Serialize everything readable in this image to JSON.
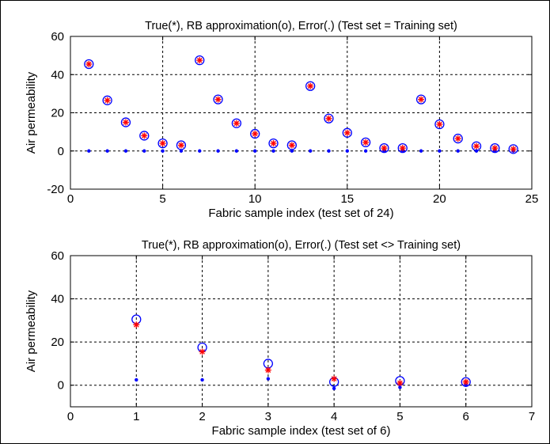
{
  "colors": {
    "true_marker": "#ff0000",
    "approx_marker": "#0000ff",
    "error_marker": "#0000ff",
    "axes": "#000000",
    "grid": "#000000",
    "background": "#ffffff"
  },
  "chart_data": [
    {
      "type": "scatter",
      "title": "True(*), RB approximation(o), Error(.) (Test set = Training set)",
      "xlabel": "Fabric sample index (test set of 24)",
      "ylabel": "Air permeability",
      "xlim": [
        0,
        25
      ],
      "ylim": [
        -20,
        60
      ],
      "xticks": [
        "0",
        "5",
        "10",
        "15",
        "20",
        "25"
      ],
      "yticks": [
        "-20",
        "0",
        "20",
        "40",
        "60"
      ],
      "grid": true,
      "series": [
        {
          "marker": "asterisk",
          "x": [
            1,
            2,
            3,
            4,
            5,
            6,
            7,
            8,
            9,
            10,
            11,
            12,
            13,
            14,
            15,
            16,
            17,
            18,
            19,
            20,
            21,
            22,
            23,
            24
          ],
          "y": [
            45.5,
            26.5,
            15,
            8,
            4,
            3,
            47.5,
            27,
            14.5,
            9,
            4,
            3,
            34,
            17,
            9.5,
            4.5,
            1.5,
            1.5,
            27,
            14,
            6.5,
            2.5,
            1.5,
            1
          ]
        },
        {
          "marker": "circle",
          "x": [
            1,
            2,
            3,
            4,
            5,
            6,
            7,
            8,
            9,
            10,
            11,
            12,
            13,
            14,
            15,
            16,
            17,
            18,
            19,
            20,
            21,
            22,
            23,
            24
          ],
          "y": [
            45.5,
            26.5,
            15,
            8,
            4,
            3,
            47.5,
            27,
            14.5,
            9,
            4,
            3,
            34,
            17,
            9.5,
            4.5,
            1.5,
            1.5,
            27,
            14,
            6.5,
            2.5,
            1.5,
            1
          ]
        },
        {
          "marker": "dot",
          "x": [
            1,
            2,
            3,
            4,
            5,
            6,
            7,
            8,
            9,
            10,
            11,
            12,
            13,
            14,
            15,
            16,
            17,
            18,
            19,
            20,
            21,
            22,
            23,
            24
          ],
          "y": [
            0,
            0,
            0,
            0,
            0,
            0,
            0,
            0,
            0,
            0,
            0,
            0,
            0,
            0,
            0,
            0,
            0,
            0,
            0,
            0,
            0,
            0,
            0,
            0
          ]
        }
      ]
    },
    {
      "type": "scatter",
      "title": "True(*), RB approximation(o), Error(.) (Test set <> Training set)",
      "xlabel": "Fabric sample index (test set of 6)",
      "ylabel": "Air permeability",
      "xlim": [
        0,
        7
      ],
      "ylim": [
        -10,
        60
      ],
      "xticks": [
        "0",
        "1",
        "2",
        "3",
        "4",
        "5",
        "6",
        "7"
      ],
      "yticks": [
        "0",
        "20",
        "40",
        "60"
      ],
      "grid": true,
      "series": [
        {
          "marker": "asterisk",
          "x": [
            1,
            2,
            3,
            4,
            5,
            6
          ],
          "y": [
            28,
            15.5,
            7,
            3,
            1,
            1.5
          ]
        },
        {
          "marker": "circle",
          "x": [
            1,
            2,
            3,
            4,
            5,
            6
          ],
          "y": [
            30.5,
            17.5,
            10,
            1.5,
            2,
            1.5
          ]
        },
        {
          "marker": "dot",
          "x": [
            1,
            2,
            3,
            4,
            5,
            6
          ],
          "y": [
            2.5,
            2.5,
            3,
            -1.5,
            -1,
            0
          ]
        }
      ]
    }
  ]
}
